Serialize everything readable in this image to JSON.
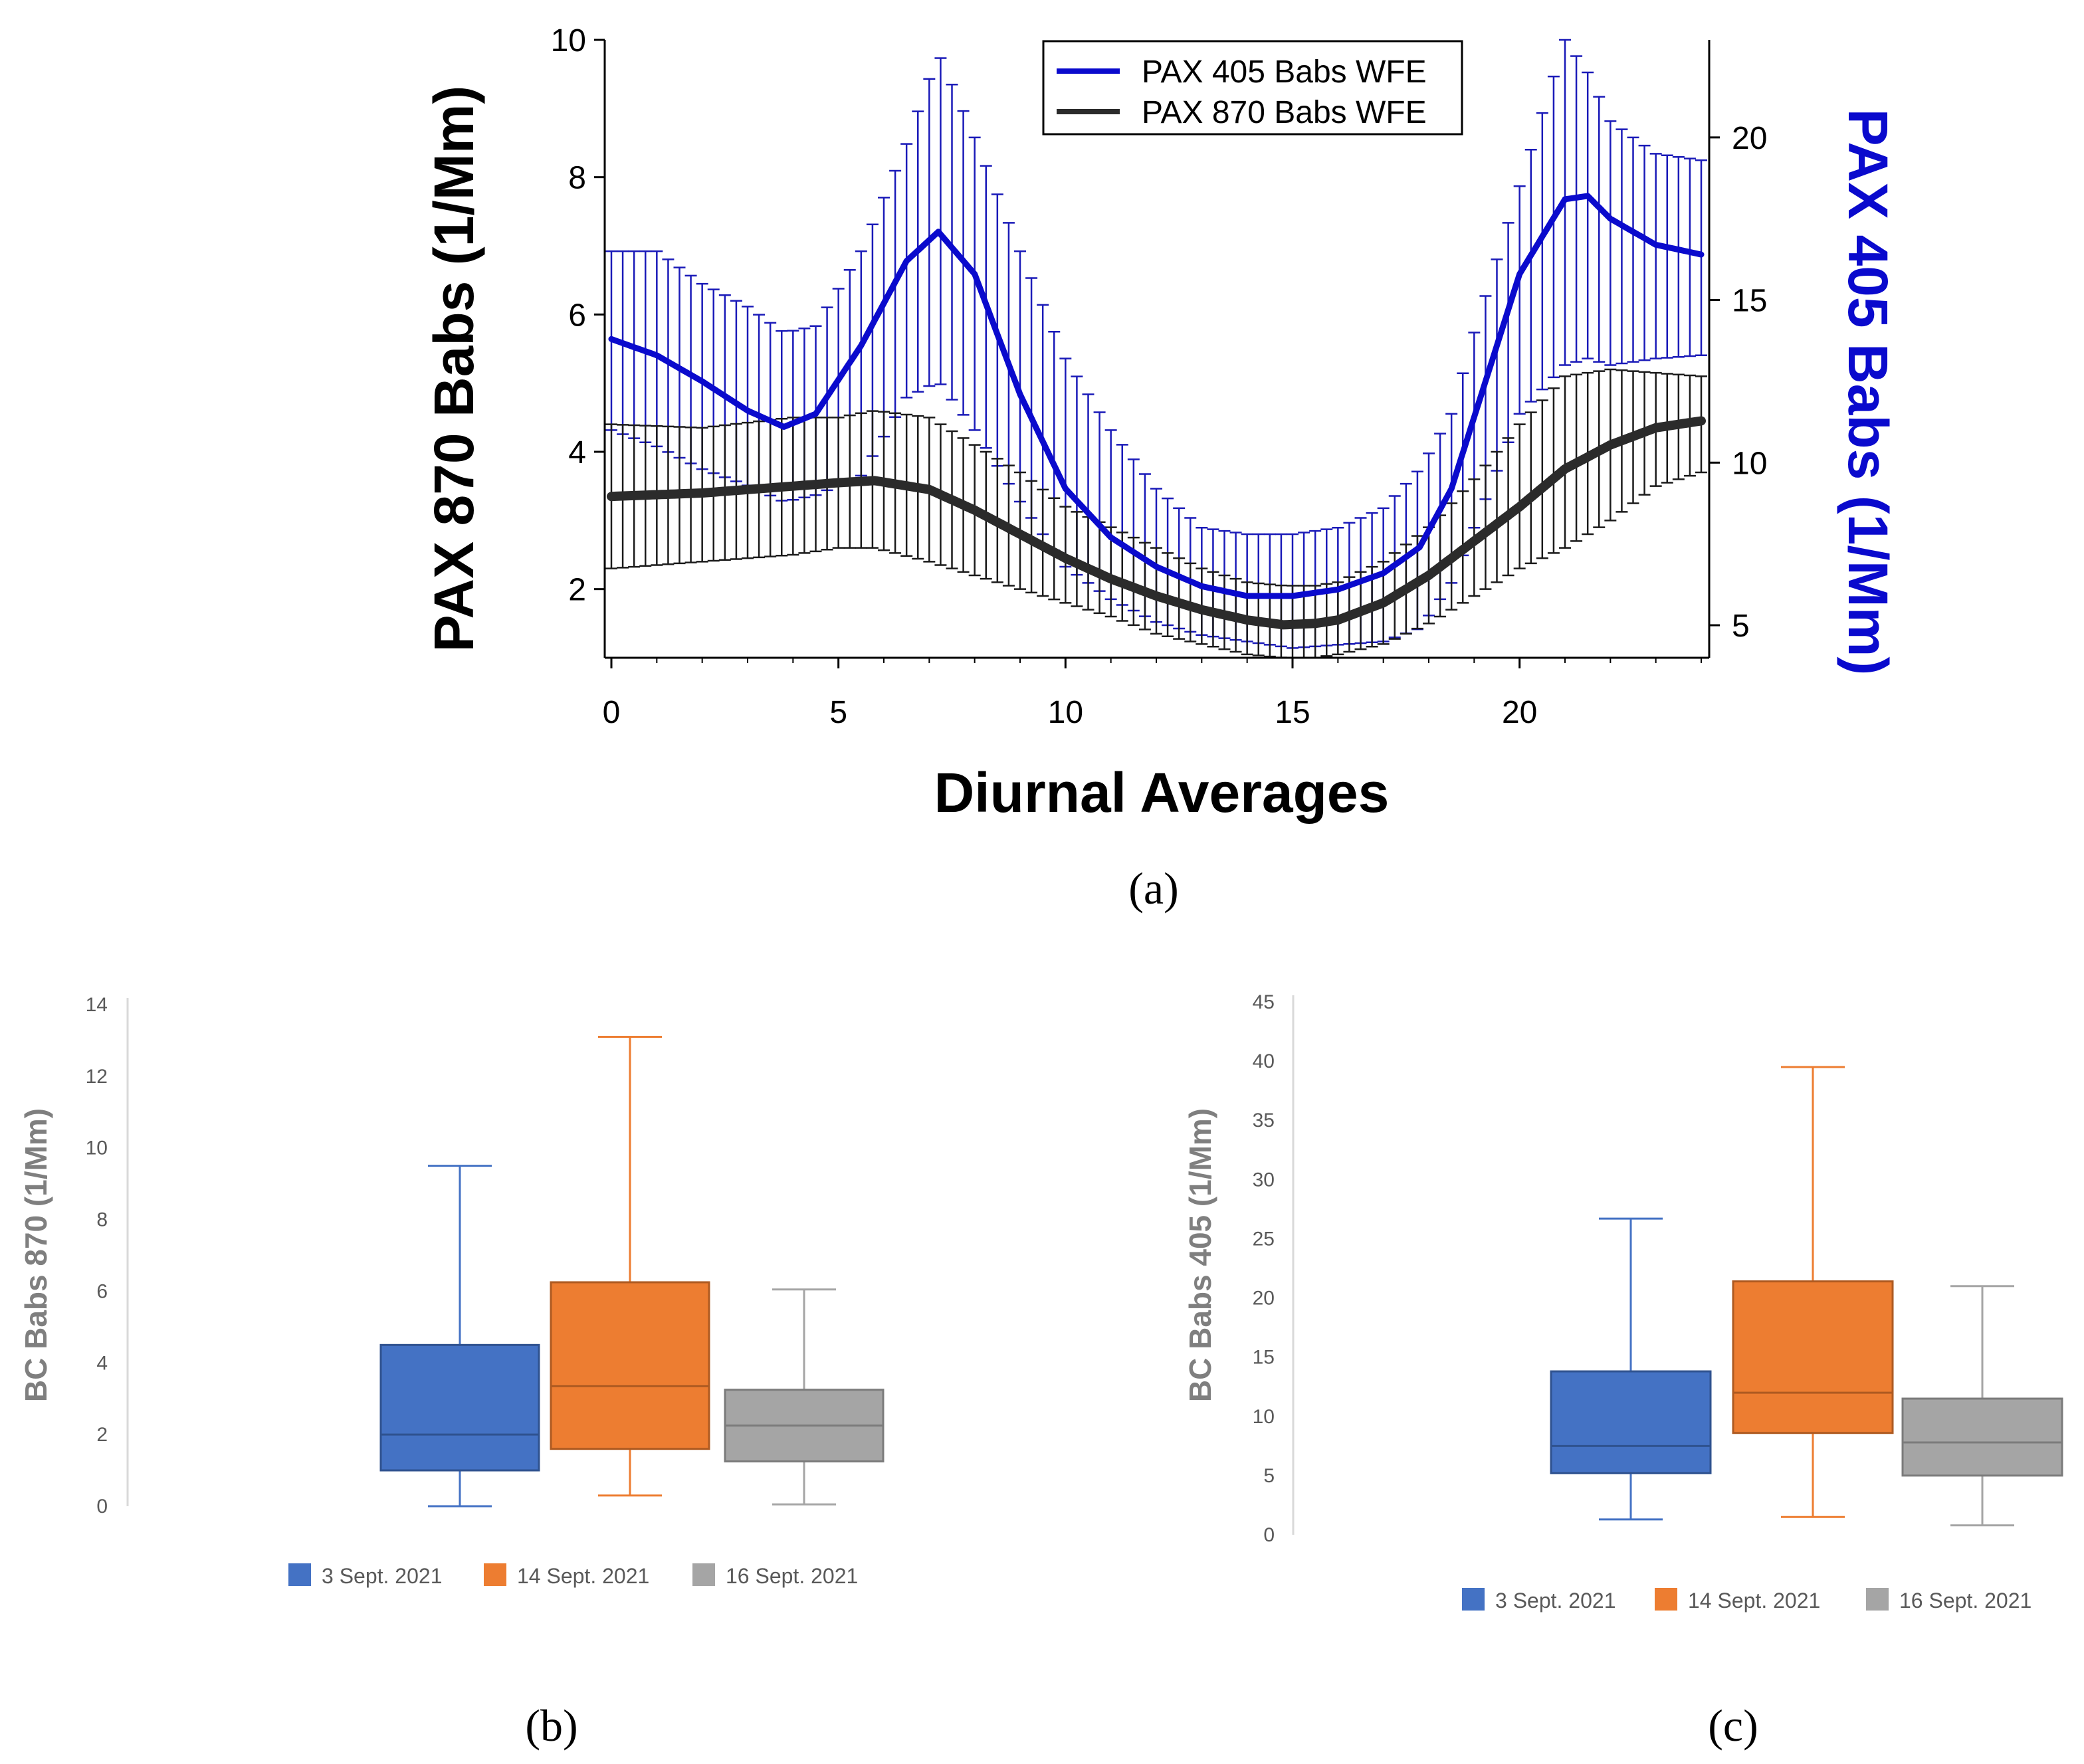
{
  "chart_data": [
    {
      "panel": "a",
      "caption": "(a)",
      "type": "line",
      "xlabel": "Diurnal Averages",
      "ylabel": "PAX 870 Babs (1/Mm)",
      "ylabel_right": "PAX 405 Babs (1/Mm)",
      "xlim": [
        0,
        24
      ],
      "ylim": [
        1,
        10
      ],
      "ylim_right": [
        4,
        23
      ],
      "x_ticks": [
        0,
        5,
        10,
        15,
        20
      ],
      "y_ticks": [
        2,
        4,
        6,
        8,
        10
      ],
      "y_ticks_right": [
        5,
        10,
        15,
        20
      ],
      "legend": [
        "PAX 405 Babs WFE",
        "PAX 870 Babs WFE"
      ],
      "legend_position": "top-right",
      "series": [
        {
          "name": "PAX 405 Babs WFE",
          "axis": "right",
          "color": "#0a0acd",
          "x": [
            0,
            1,
            2,
            3,
            3.8,
            4.5,
            5.5,
            6.5,
            7.2,
            8,
            9,
            10,
            11,
            12,
            13,
            14,
            15,
            16,
            17,
            17.8,
            18.5,
            19,
            20,
            21,
            21.5,
            22,
            23,
            24
          ],
          "y": [
            13.8,
            13.3,
            12.5,
            11.6,
            11.1,
            11.5,
            13.6,
            16.2,
            17.1,
            15.8,
            12.1,
            9.2,
            7.7,
            6.8,
            6.2,
            5.9,
            5.9,
            6.1,
            6.6,
            7.4,
            9.2,
            11.4,
            15.8,
            18.1,
            18.2,
            17.5,
            16.7,
            16.4
          ],
          "upper": [
            16.5,
            16.5,
            15.5,
            14.8,
            14.0,
            14.2,
            16.5,
            19.8,
            22.6,
            20.0,
            16.5,
            13.2,
            11.0,
            9.2,
            8.0,
            7.8,
            7.8,
            8.0,
            8.6,
            9.8,
            11.5,
            14.0,
            18.5,
            23.0,
            22.0,
            20.5,
            19.5,
            19.3
          ],
          "lower": [
            11.0,
            10.5,
            9.8,
            9.3,
            8.8,
            9.0,
            9.6,
            12.0,
            12.5,
            11.0,
            8.8,
            6.8,
            5.8,
            5.1,
            4.7,
            4.5,
            4.3,
            4.4,
            4.5,
            4.9,
            6.3,
            8.0,
            11.5,
            13.0,
            13.2,
            13.0,
            13.2,
            13.3
          ]
        },
        {
          "name": "PAX 870 Babs WFE",
          "axis": "left",
          "color": "#2b2b2b",
          "x": [
            0,
            2,
            4,
            5,
            5.8,
            7,
            8,
            9,
            10,
            11,
            12,
            13,
            14,
            14.8,
            15.5,
            16,
            17,
            18,
            19,
            20,
            21,
            22,
            23,
            24
          ],
          "y": [
            3.35,
            3.4,
            3.5,
            3.55,
            3.58,
            3.45,
            3.15,
            2.8,
            2.45,
            2.15,
            1.9,
            1.7,
            1.55,
            1.48,
            1.5,
            1.55,
            1.8,
            2.2,
            2.7,
            3.2,
            3.75,
            4.1,
            4.35,
            4.45
          ],
          "upper": [
            4.4,
            4.35,
            4.5,
            4.5,
            4.6,
            4.5,
            4.1,
            3.7,
            3.2,
            2.9,
            2.6,
            2.3,
            2.1,
            2.05,
            2.05,
            2.1,
            2.4,
            2.9,
            3.6,
            4.4,
            5.1,
            5.2,
            5.15,
            5.1
          ],
          "lower": [
            2.3,
            2.4,
            2.5,
            2.6,
            2.6,
            2.4,
            2.2,
            2.0,
            1.8,
            1.6,
            1.35,
            1.2,
            1.05,
            1.0,
            1.0,
            1.05,
            1.2,
            1.5,
            1.9,
            2.3,
            2.6,
            3.0,
            3.5,
            3.7
          ]
        }
      ]
    },
    {
      "panel": "b",
      "caption": "(b)",
      "type": "box",
      "ylabel": "BC Babs 870 (1/Mm)",
      "ylim": [
        0,
        14
      ],
      "y_ticks": [
        0,
        2,
        4,
        6,
        8,
        10,
        12,
        14
      ],
      "legend_position": "bottom",
      "boxes": [
        {
          "label": "3 Sept. 2021",
          "color": "#4472c4",
          "edge": "#2f528f",
          "min": 0.0,
          "q1": 1.0,
          "median": 2.0,
          "q3": 4.5,
          "max": 9.5
        },
        {
          "label": "14 Sept. 2021",
          "color": "#ed7d31",
          "edge": "#ae5a21",
          "min": 0.3,
          "q1": 1.6,
          "median": 3.35,
          "q3": 6.25,
          "max": 13.1
        },
        {
          "label": "16 Sept. 2021",
          "color": "#a5a5a5",
          "edge": "#7b7b7b",
          "min": 0.05,
          "q1": 1.25,
          "median": 2.25,
          "q3": 3.25,
          "max": 6.05
        }
      ]
    },
    {
      "panel": "c",
      "caption": "(c)",
      "type": "box",
      "ylabel": "BC Babs 405 (1/Mm)",
      "ylim": [
        0,
        45
      ],
      "y_ticks": [
        0,
        5,
        10,
        15,
        20,
        25,
        30,
        35,
        40,
        45
      ],
      "legend_position": "bottom",
      "boxes": [
        {
          "label": "3 Sept. 2021",
          "color": "#4472c4",
          "edge": "#2f528f",
          "min": 1.3,
          "q1": 5.2,
          "median": 7.5,
          "q3": 13.8,
          "max": 26.7
        },
        {
          "label": "14 Sept. 2021",
          "color": "#ed7d31",
          "edge": "#ae5a21",
          "min": 1.5,
          "q1": 8.6,
          "median": 12.0,
          "q3": 21.4,
          "max": 39.5
        },
        {
          "label": "16 Sept. 2021",
          "color": "#a5a5a5",
          "edge": "#7b7b7b",
          "min": 0.8,
          "q1": 5.0,
          "median": 7.8,
          "q3": 11.5,
          "max": 21.0
        }
      ]
    }
  ]
}
